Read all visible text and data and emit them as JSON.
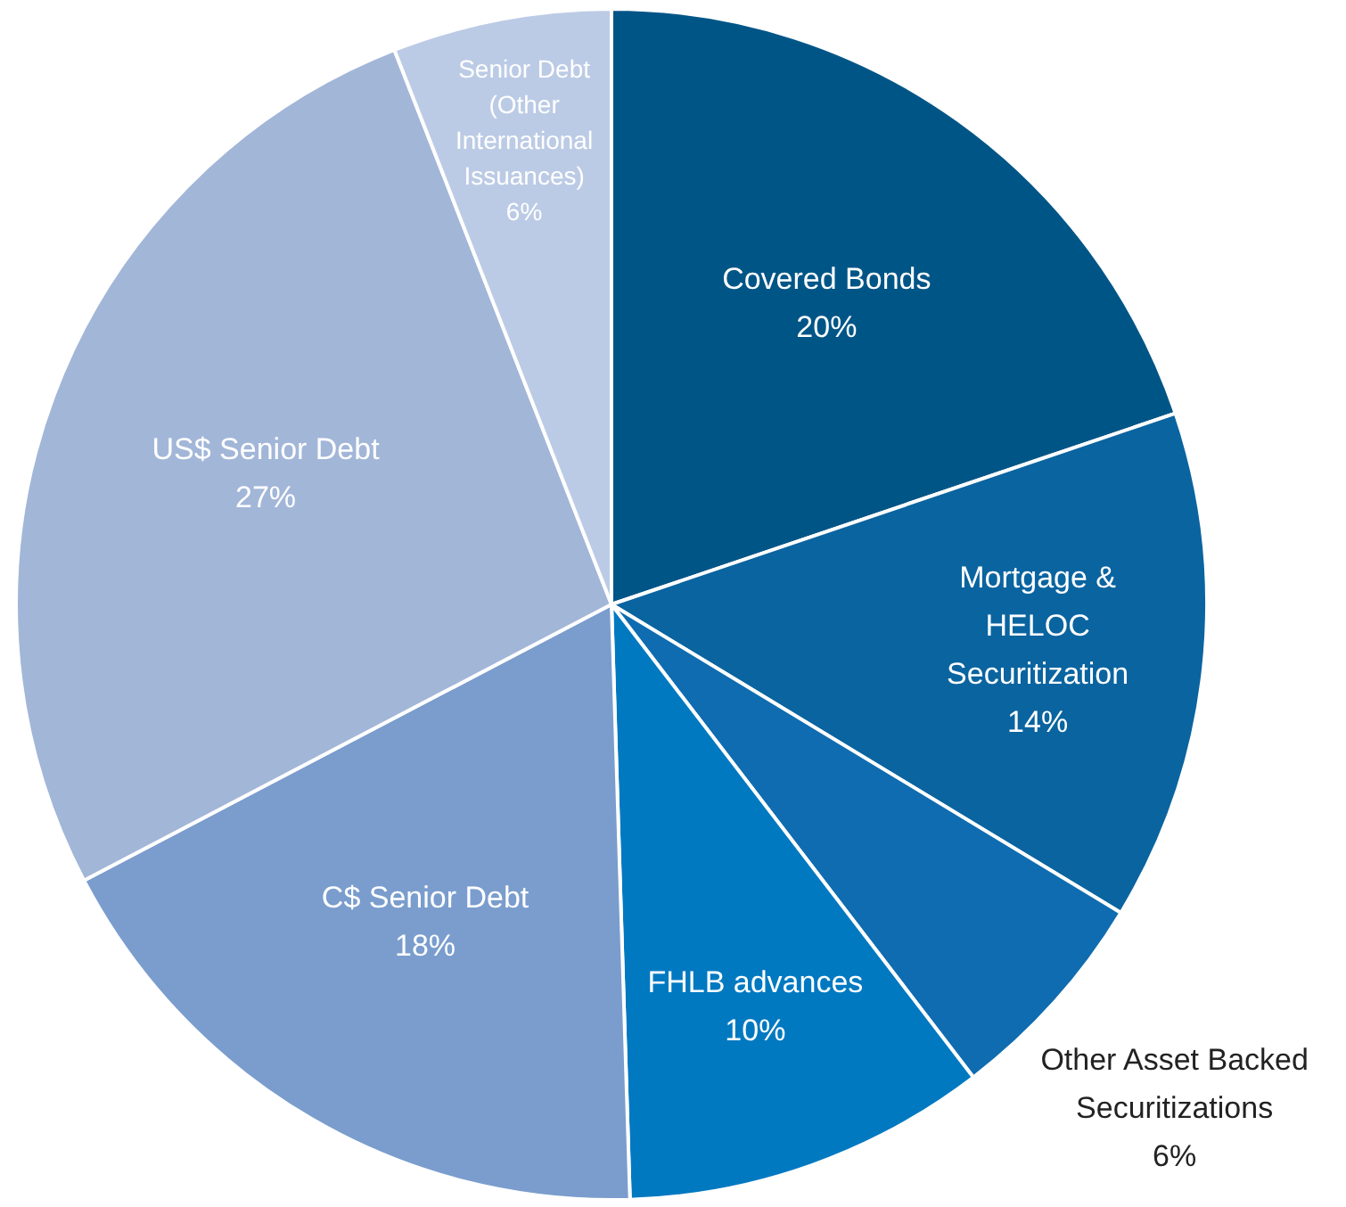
{
  "chart_data": {
    "type": "pie",
    "categories": [
      "Covered Bonds",
      "Mortgage & HELOC Securitization",
      "Other Asset Backed Securitizations",
      "FHLB advances",
      "C$ Senior Debt",
      "US$ Senior Debt",
      "Senior Debt (Other International Issuances)"
    ],
    "values": [
      20,
      14,
      6,
      10,
      18,
      27,
      6
    ],
    "colors": [
      "#005587",
      "#0a64a0",
      "#0f6cb0",
      "#0079c1",
      "#7a9dcd",
      "#a2b6d8",
      "#bccbe5"
    ],
    "value_labels": [
      "20%",
      "14%",
      "6%",
      "10%",
      "18%",
      "27%",
      "6%"
    ],
    "legend": false
  }
}
